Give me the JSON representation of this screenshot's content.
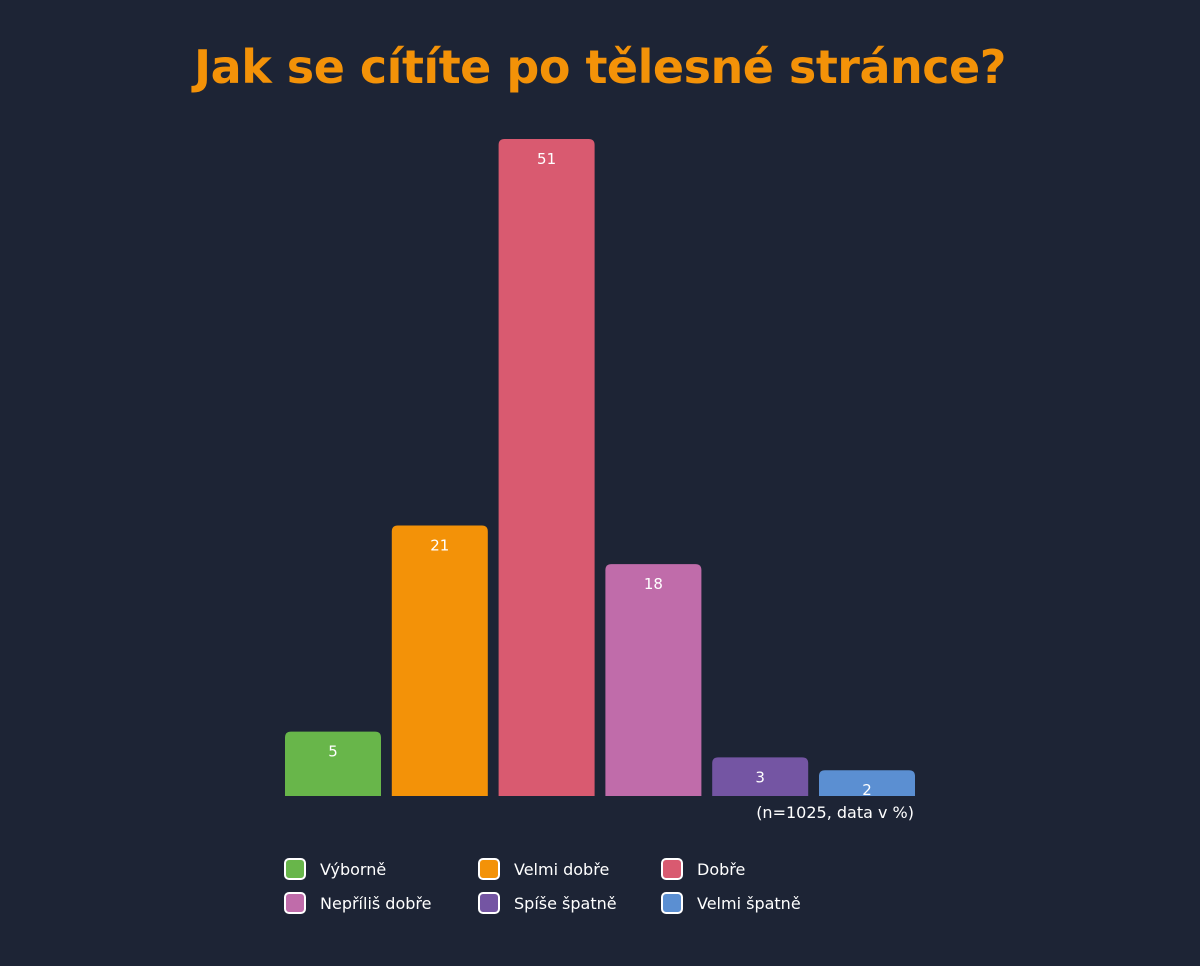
{
  "chart_data": {
    "type": "bar",
    "title": "Jak se cítíte po tělesné stránce?",
    "note": "(n=1025, data v %)",
    "categories": [
      "Výborně",
      "Velmi dobře",
      "Dobře",
      "Nepříliš dobře",
      "Spíše špatně",
      "Velmi špatně"
    ],
    "values": [
      5,
      21,
      51,
      18,
      3,
      2
    ],
    "colors": [
      "#68b64a",
      "#f39208",
      "#d95a70",
      "#c06caa",
      "#7455a3",
      "#5b8fd2"
    ],
    "ylim": [
      0,
      51
    ],
    "grid": false,
    "data_labels": true,
    "legend_position": "bottom"
  }
}
